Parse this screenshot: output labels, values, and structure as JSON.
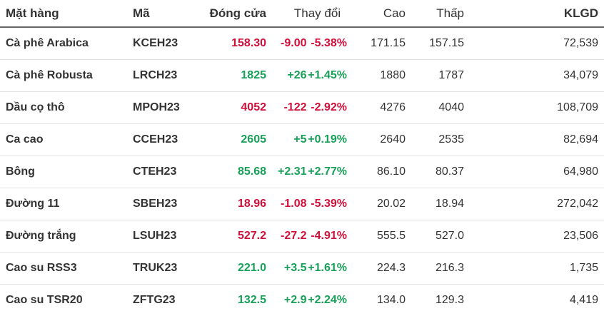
{
  "headers": {
    "name": "Mặt hàng",
    "code": "Mã",
    "close": "Đóng cửa",
    "change": "Thay đổi",
    "high": "Cao",
    "low": "Thấp",
    "volume": "KLGD"
  },
  "colors": {
    "negative": "#d0103a",
    "positive": "#18a058"
  },
  "rows": [
    {
      "name": "Cà phê Arabica",
      "code": "KCEH23",
      "close": "158.30",
      "change": "-9.00",
      "pct": "-5.38%",
      "high": "171.15",
      "low": "157.15",
      "volume": "72,539",
      "trend": "down"
    },
    {
      "name": "Cà phê Robusta",
      "code": "LRCH23",
      "close": "1825",
      "change": "+26",
      "pct": "+1.45%",
      "high": "1880",
      "low": "1787",
      "volume": "34,079",
      "trend": "up"
    },
    {
      "name": "Dầu cọ thô",
      "code": "MPOH23",
      "close": "4052",
      "change": "-122",
      "pct": "-2.92%",
      "high": "4276",
      "low": "4040",
      "volume": "108,709",
      "trend": "down"
    },
    {
      "name": "Ca cao",
      "code": "CCEH23",
      "close": "2605",
      "change": "+5",
      "pct": "+0.19%",
      "high": "2640",
      "low": "2535",
      "volume": "82,694",
      "trend": "up"
    },
    {
      "name": "Bông",
      "code": "CTEH23",
      "close": "85.68",
      "change": "+2.31",
      "pct": "+2.77%",
      "high": "86.10",
      "low": "80.37",
      "volume": "64,980",
      "trend": "up"
    },
    {
      "name": "Đường 11",
      "code": "SBEH23",
      "close": "18.96",
      "change": "-1.08",
      "pct": "-5.39%",
      "high": "20.02",
      "low": "18.94",
      "volume": "272,042",
      "trend": "down"
    },
    {
      "name": "Đường trắng",
      "code": "LSUH23",
      "close": "527.2",
      "change": "-27.2",
      "pct": "-4.91%",
      "high": "555.5",
      "low": "527.0",
      "volume": "23,506",
      "trend": "down"
    },
    {
      "name": "Cao su RSS3",
      "code": "TRUK23",
      "close": "221.0",
      "change": "+3.5",
      "pct": "+1.61%",
      "high": "224.3",
      "low": "216.3",
      "volume": "1,735",
      "trend": "up"
    },
    {
      "name": "Cao su TSR20",
      "code": "ZFTG23",
      "close": "132.5",
      "change": "+2.9",
      "pct": "+2.24%",
      "high": "134.0",
      "low": "129.3",
      "volume": "4,419",
      "trend": "up"
    }
  ]
}
